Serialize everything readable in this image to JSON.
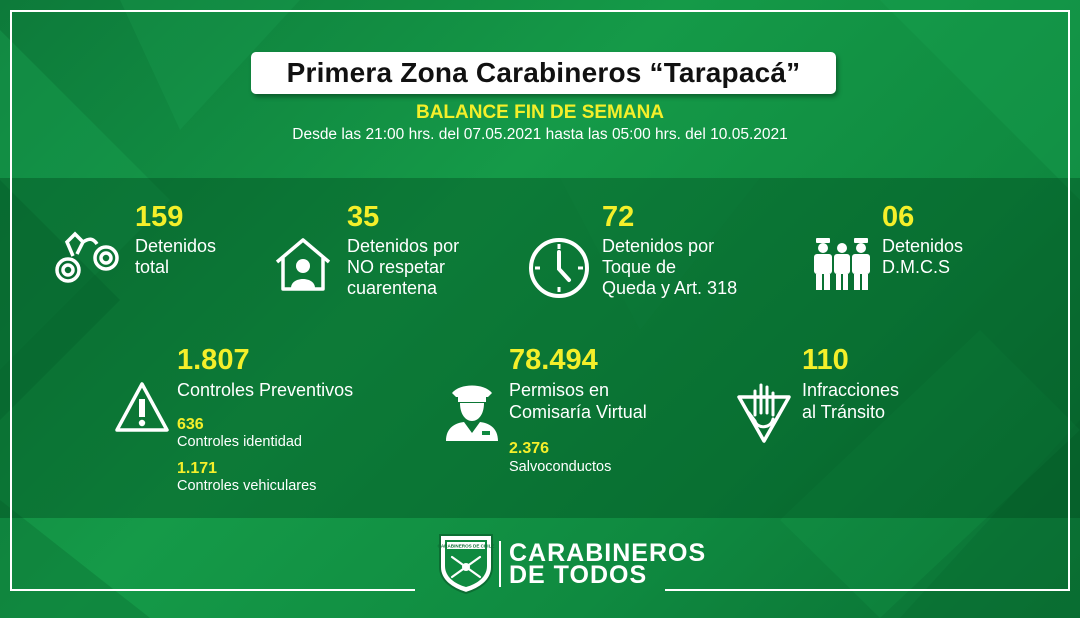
{
  "header": {
    "title": "Primera Zona Carabineros “Tarapacá”",
    "subtitle": "BALANCE FIN DE SEMANA",
    "date_range": "Desde las 21:00 hrs. del 07.05.2021 hasta las 05:00 hrs. del 10.05.2021"
  },
  "stats_row1": [
    {
      "value": "159",
      "label_line1": "Detenidos",
      "label_line2": "total",
      "label_line3": "",
      "icon": "handcuffs-icon"
    },
    {
      "value": "35",
      "label_line1": "Detenidos por",
      "label_line2": "NO respetar",
      "label_line3": "cuarentena",
      "icon": "house-person-icon"
    },
    {
      "value": "72",
      "label_line1": "Detenidos por",
      "label_line2": "Toque de",
      "label_line3": "Queda y Art. 318",
      "icon": "clock-icon"
    },
    {
      "value": "06",
      "label_line1": "Detenidos",
      "label_line2": "D.M.C.S",
      "label_line3": "",
      "icon": "group-people-icon"
    }
  ],
  "stats_row2": {
    "controles": {
      "value": "1.807",
      "label": "Controles Preventivos",
      "icon": "warning-icon",
      "sub": [
        {
          "value": "636",
          "label": "Controles identidad"
        },
        {
          "value": "1.171",
          "label": "Controles vehiculares"
        }
      ]
    },
    "permisos": {
      "value": "78.494",
      "label_line1": "Permisos en",
      "label_line2": "Comisaría Virtual",
      "icon": "police-officer-icon",
      "sub": [
        {
          "value": "2.376",
          "label": "Salvoconductos"
        }
      ]
    },
    "infracciones": {
      "value": "110",
      "label_line1": "Infracciones",
      "label_line2": "al Tránsito",
      "icon": "stop-hand-icon"
    }
  },
  "footer": {
    "emblem_text_top": "CARABINEROS DE CHILE",
    "brand_line1": "CARABINEROS",
    "brand_line2": "DE TODOS"
  },
  "colors": {
    "background": "#0f8a40",
    "accent_yellow": "#f4ef2a",
    "text": "#ffffff"
  }
}
